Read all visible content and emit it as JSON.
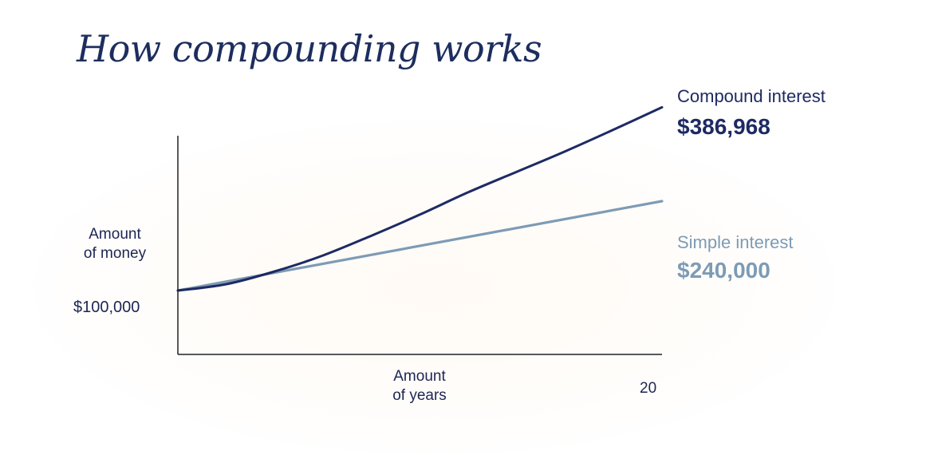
{
  "title": "How compounding works",
  "chart_data": {
    "type": "line",
    "ylabel": "Amount of money",
    "ylabel_lines": [
      "Amount",
      "of money"
    ],
    "xlabel": "Amount of years",
    "xlabel_lines": [
      "Amount",
      "of years"
    ],
    "x_tick_end": "20",
    "y_tick_start": "$100,000",
    "xlim": [
      0,
      20
    ],
    "ylim": [
      0,
      420000
    ],
    "grid": false,
    "series": [
      {
        "name": "Compound interest",
        "end_label": "$386,968",
        "color": "#1d2a63",
        "x": [
          0,
          2,
          4,
          6,
          8,
          10,
          12,
          14,
          16,
          18,
          20
        ],
        "values": [
          100000,
          110000,
          130000,
          155000,
          186000,
          219000,
          254000,
          286000,
          318000,
          352000,
          386968
        ]
      },
      {
        "name": "Simple interest",
        "end_label": "$240,000",
        "color": "#7d9bb5",
        "x": [
          0,
          20
        ],
        "values": [
          100000,
          240000
        ]
      }
    ]
  }
}
